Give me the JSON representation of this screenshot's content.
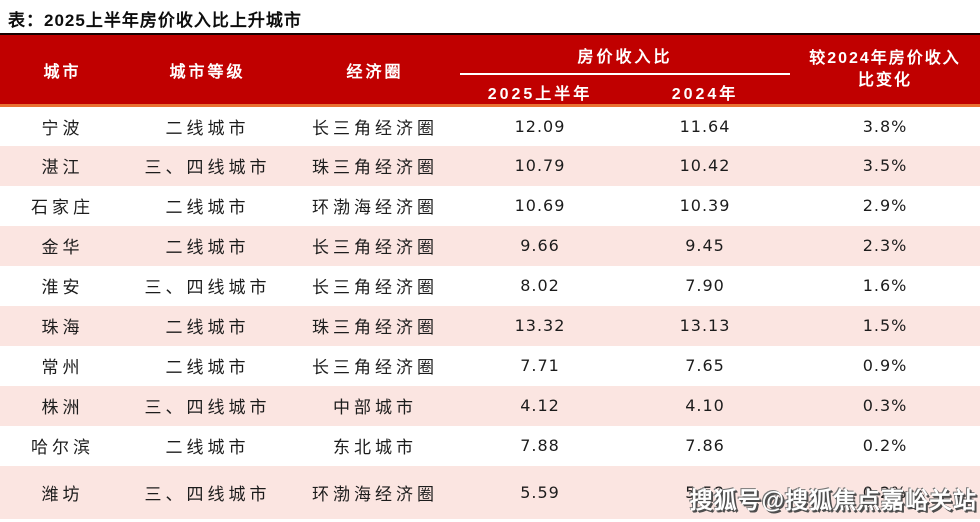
{
  "page": {
    "title": "表：2025上半年房价收入比上升城市"
  },
  "colors": {
    "header_bg": "#c00000",
    "header_text": "#ffffff",
    "header_top_border": "#190000",
    "accent_orange": "#e97132",
    "row_alt_pink": "#fbe5e1",
    "body_text": "#1c1c1c"
  },
  "chart_data": {
    "type": "table",
    "title": "表：2025上半年房价收入比上升城市",
    "headers": {
      "city": "城市",
      "tier": "城市等级",
      "circle": "经济圈",
      "ratio_group": "房价收入比",
      "sub_2025": "2025上半年",
      "sub_2024": "2024年",
      "change": "较2024年房价收入\n比变化"
    },
    "rows": [
      {
        "city": "宁波",
        "tier": "二线城市",
        "circle": "长三角经济圈",
        "ratio_2025": "12.09",
        "ratio_2024": "11.64",
        "change": "3.8%"
      },
      {
        "city": "湛江",
        "tier": "三、四线城市",
        "circle": "珠三角经济圈",
        "ratio_2025": "10.79",
        "ratio_2024": "10.42",
        "change": "3.5%"
      },
      {
        "city": "石家庄",
        "tier": "二线城市",
        "circle": "环渤海经济圈",
        "ratio_2025": "10.69",
        "ratio_2024": "10.39",
        "change": "2.9%"
      },
      {
        "city": "金华",
        "tier": "二线城市",
        "circle": "长三角经济圈",
        "ratio_2025": "9.66",
        "ratio_2024": "9.45",
        "change": "2.3%"
      },
      {
        "city": "淮安",
        "tier": "三、四线城市",
        "circle": "长三角经济圈",
        "ratio_2025": "8.02",
        "ratio_2024": "7.90",
        "change": "1.6%"
      },
      {
        "city": "珠海",
        "tier": "二线城市",
        "circle": "珠三角经济圈",
        "ratio_2025": "13.32",
        "ratio_2024": "13.13",
        "change": "1.5%"
      },
      {
        "city": "常州",
        "tier": "二线城市",
        "circle": "长三角经济圈",
        "ratio_2025": "7.71",
        "ratio_2024": "7.65",
        "change": "0.9%"
      },
      {
        "city": "株洲",
        "tier": "三、四线城市",
        "circle": "中部城市",
        "ratio_2025": "4.12",
        "ratio_2024": "4.10",
        "change": "0.3%"
      },
      {
        "city": "哈尔滨",
        "tier": "二线城市",
        "circle": "东北城市",
        "ratio_2025": "7.88",
        "ratio_2024": "7.86",
        "change": "0.2%"
      },
      {
        "city": "潍坊",
        "tier": "三、四线城市",
        "circle": "环渤海经济圈",
        "ratio_2025": "5.59",
        "ratio_2024": "5.58",
        "change": "0.2%"
      }
    ]
  },
  "watermark": {
    "text": "搜狐号@搜狐焦点嘉峪关站"
  }
}
